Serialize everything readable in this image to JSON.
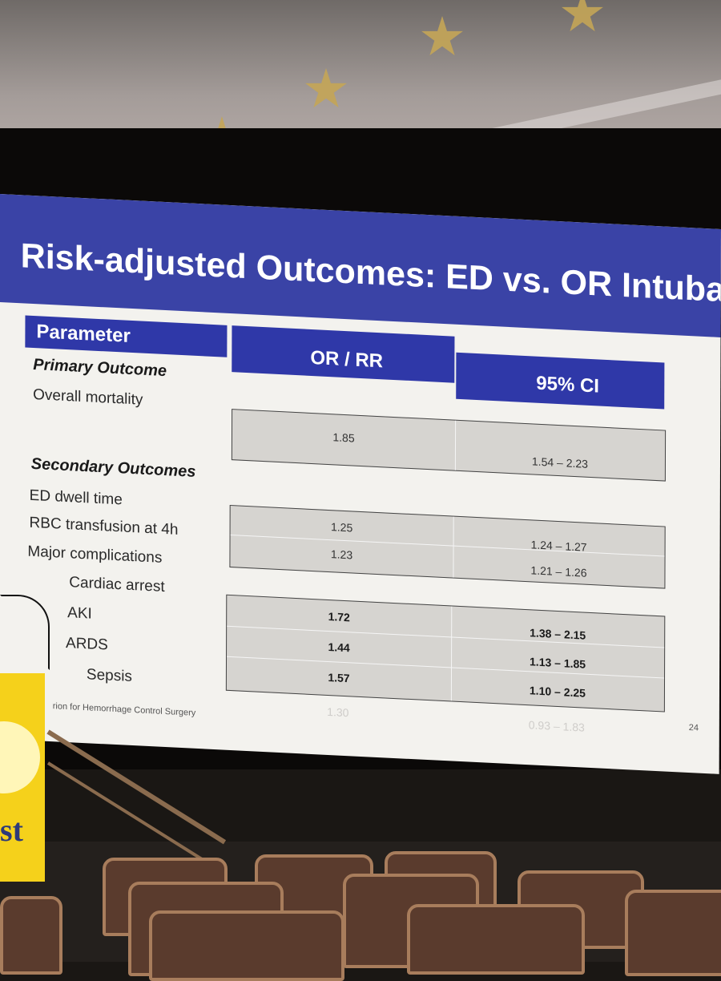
{
  "slide": {
    "title": "Risk-adjusted Outcomes:  ED vs. OR Intubation",
    "page_number": "24",
    "footer": "rion for Hemorrhage Control Surgery"
  },
  "table": {
    "headers": {
      "parameter": "Parameter",
      "or_rr": "OR / RR",
      "ci": "95% CI"
    },
    "sections": {
      "primary": "Primary Outcome",
      "secondary": "Secondary Outcomes"
    },
    "rows": [
      {
        "label": "Overall mortality",
        "or_rr": "1.85",
        "ci": "1.54 – 2.23"
      },
      {
        "label": "ED dwell time",
        "or_rr": "1.25",
        "ci": "1.24 – 1.27"
      },
      {
        "label": "RBC transfusion at 4h",
        "or_rr": "1.23",
        "ci": "1.21 – 1.26"
      },
      {
        "label": "Major complications",
        "or_rr": "",
        "ci": ""
      },
      {
        "label": "Cardiac arrest",
        "or_rr": "1.72",
        "ci": "1.38 – 2.15"
      },
      {
        "label": "AKI",
        "or_rr": "1.44",
        "ci": "1.13 – 1.85"
      },
      {
        "label": "ARDS",
        "or_rr": "1.57",
        "ci": "1.10 – 2.25"
      },
      {
        "label": "Sepsis",
        "or_rr": "1.30",
        "ci": "0.93 – 1.83"
      }
    ]
  },
  "venue": {
    "podium_text": "st"
  }
}
